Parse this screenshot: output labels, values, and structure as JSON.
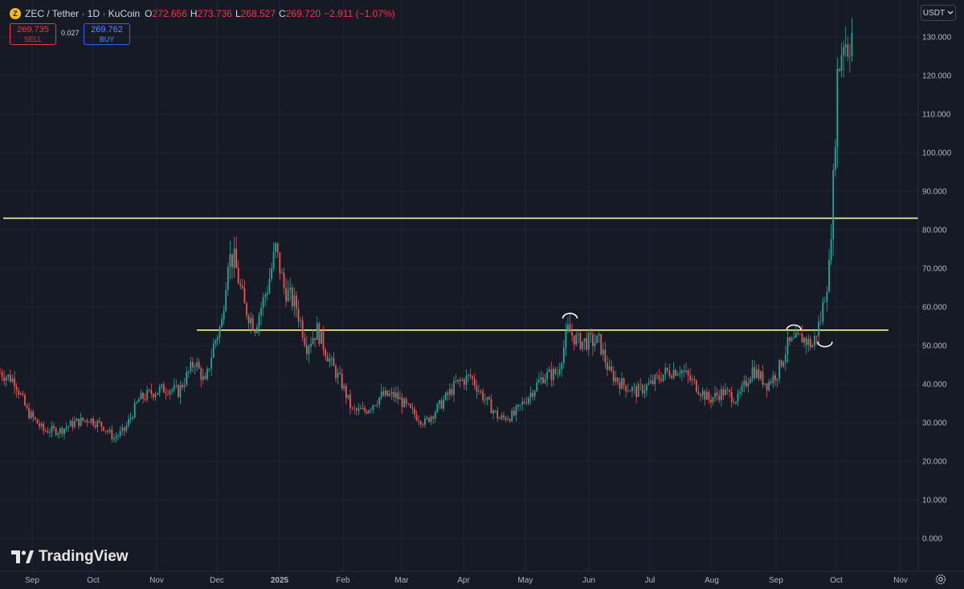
{
  "legend": {
    "symbol": "ZEC / Tether · 1D · KuCoin",
    "coin_icon": "zcash-coin-icon",
    "open_label": "O",
    "open": "272.656",
    "high_label": "H",
    "high": "273.736",
    "low_label": "L",
    "low": "268.527",
    "close_label": "C",
    "close": "269.720",
    "change": "−2.911 (−1.07%)"
  },
  "trade": {
    "sell_price": "269.735",
    "sell_label": "SELL",
    "spread": "0.027",
    "buy_price": "269.762",
    "buy_label": "BUY"
  },
  "currency": {
    "label": "USDT",
    "icon": "chevron-down-icon"
  },
  "watermark": {
    "text": "TradingView",
    "icon": "tradingview-logo-icon"
  },
  "colors": {
    "up": "#26a69a",
    "down": "#ef5350",
    "level_line": "#fff59d",
    "background": "#161a25",
    "grid": "#222633",
    "sell": "#f23645",
    "buy": "#2962ff"
  },
  "chart_data": {
    "type": "candlestick",
    "y_axis": {
      "ticks": [
        "130.000",
        "120.000",
        "110.000",
        "100.000",
        "90.000",
        "80.000",
        "70.000",
        "60.000",
        "50.000",
        "40.000",
        "30.000",
        "20.000",
        "10.000",
        "0.000"
      ],
      "range": [
        -5,
        141
      ]
    },
    "x_axis": {
      "labels": [
        "Sep",
        "Oct",
        "Nov",
        "Dec",
        "2025",
        "Feb",
        "Mar",
        "Apr",
        "May",
        "Jun",
        "Jul",
        "Aug",
        "Sep",
        "Oct",
        "Nov"
      ],
      "start": "2024-08-26",
      "end": "2025-11-12"
    },
    "horizontal_levels": [
      83,
      54
    ],
    "annotation_arcs": [
      {
        "date": "2025-05-28",
        "price": 57
      },
      {
        "date": "2025-09-13",
        "price": 54
      },
      {
        "date": "2025-09-28",
        "price": 51
      }
    ],
    "series": [
      [
        "2024-08-26",
        43
      ],
      [
        "2024-09-02",
        41
      ],
      [
        "2024-09-08",
        33
      ],
      [
        "2024-09-16",
        28
      ],
      [
        "2024-09-24",
        28
      ],
      [
        "2024-10-01",
        30
      ],
      [
        "2024-10-08",
        31
      ],
      [
        "2024-10-15",
        29
      ],
      [
        "2024-10-20",
        26
      ],
      [
        "2024-10-25",
        28
      ],
      [
        "2024-11-01",
        36
      ],
      [
        "2024-11-08",
        38
      ],
      [
        "2024-11-15",
        39
      ],
      [
        "2024-11-20",
        38
      ],
      [
        "2024-11-28",
        46
      ],
      [
        "2024-12-03",
        40
      ],
      [
        "2024-12-07",
        50
      ],
      [
        "2024-12-11",
        56
      ],
      [
        "2024-12-14",
        73
      ],
      [
        "2024-12-17",
        72
      ],
      [
        "2024-12-22",
        60
      ],
      [
        "2024-12-27",
        55
      ],
      [
        "2025-01-02",
        65
      ],
      [
        "2025-01-06",
        75
      ],
      [
        "2025-01-10",
        65
      ],
      [
        "2025-01-16",
        60
      ],
      [
        "2025-01-21",
        50
      ],
      [
        "2025-01-26",
        54
      ],
      [
        "2025-02-02",
        45
      ],
      [
        "2025-02-07",
        40
      ],
      [
        "2025-02-12",
        33
      ],
      [
        "2025-02-18",
        33
      ],
      [
        "2025-02-26",
        37
      ],
      [
        "2025-03-05",
        37
      ],
      [
        "2025-03-12",
        33
      ],
      [
        "2025-03-19",
        30
      ],
      [
        "2025-03-27",
        35
      ],
      [
        "2025-04-03",
        40
      ],
      [
        "2025-04-10",
        42
      ],
      [
        "2025-04-17",
        36
      ],
      [
        "2025-04-24",
        31
      ],
      [
        "2025-05-01",
        32
      ],
      [
        "2025-05-08",
        37
      ],
      [
        "2025-05-15",
        42
      ],
      [
        "2025-05-22",
        43
      ],
      [
        "2025-05-27",
        54
      ],
      [
        "2025-06-01",
        51
      ],
      [
        "2025-06-05",
        51
      ],
      [
        "2025-06-11",
        51
      ],
      [
        "2025-06-16",
        43
      ],
      [
        "2025-06-22",
        40
      ],
      [
        "2025-06-29",
        38
      ],
      [
        "2025-07-06",
        40
      ],
      [
        "2025-07-13",
        43
      ],
      [
        "2025-07-20",
        44
      ],
      [
        "2025-07-27",
        40
      ],
      [
        "2025-08-03",
        36
      ],
      [
        "2025-08-10",
        38
      ],
      [
        "2025-08-17",
        36
      ],
      [
        "2025-08-24",
        44
      ],
      [
        "2025-08-31",
        40
      ],
      [
        "2025-09-05",
        43
      ],
      [
        "2025-09-10",
        50
      ],
      [
        "2025-09-17",
        52
      ],
      [
        "2025-09-22",
        50
      ],
      [
        "2025-09-26",
        57
      ],
      [
        "2025-09-30",
        70
      ],
      [
        "2025-10-02",
        92
      ],
      [
        "2025-10-04",
        120
      ],
      [
        "2025-10-07",
        130
      ],
      [
        "2025-10-09",
        128
      ],
      [
        "2025-10-11",
        131
      ]
    ]
  }
}
